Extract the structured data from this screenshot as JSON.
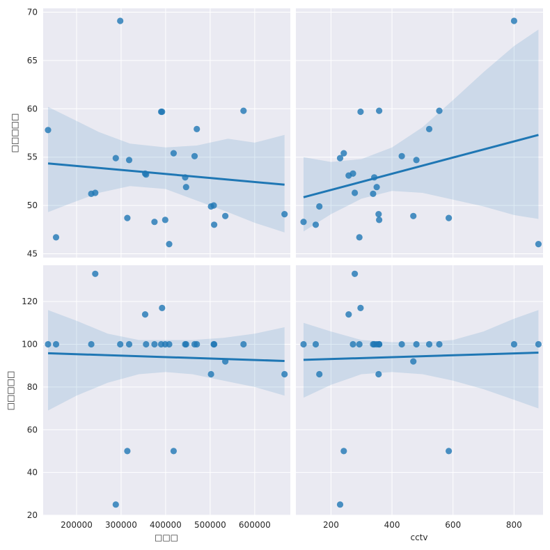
{
  "chart_data": {
    "type": "scatter",
    "grid": true,
    "x_vars": [
      {
        "label": "□□□",
        "lim": [
          125000,
          680000
        ],
        "ticks": [
          200000,
          300000,
          400000,
          500000,
          600000
        ],
        "tick_labels": [
          "200000",
          "300000",
          "400000",
          "500000",
          "600000"
        ]
      },
      {
        "label": "cctv",
        "lim": [
          85,
          895
        ],
        "ticks": [
          200,
          400,
          600,
          800
        ],
        "tick_labels": [
          "200",
          "400",
          "600",
          "800"
        ]
      }
    ],
    "y_vars": [
      {
        "label": "□□□□□",
        "lim": [
          44.6,
          70.4
        ],
        "ticks": [
          45,
          50,
          55,
          60,
          65,
          70
        ],
        "tick_labels": [
          "45",
          "50",
          "55",
          "60",
          "65",
          "70"
        ]
      },
      {
        "label": "□□□□□",
        "lim": [
          20,
          137
        ],
        "ticks": [
          20,
          40,
          60,
          80,
          100,
          120
        ],
        "tick_labels": [
          "20",
          "40",
          "60",
          "80",
          "100",
          "120"
        ]
      }
    ],
    "series": {
      "x0": [
        136000,
        154000,
        233000,
        242000,
        288000,
        298000,
        314000,
        318000,
        354000,
        356000,
        375000,
        390000,
        392000,
        399000,
        408000,
        418000,
        444000,
        446000,
        465000,
        470000,
        502000,
        508000,
        509000,
        534000,
        575000,
        667000
      ],
      "x1": [
        110,
        150,
        162,
        230,
        242,
        258,
        272,
        278,
        293,
        297,
        338,
        342,
        350,
        356,
        358,
        358,
        432,
        470,
        480,
        522,
        555,
        586,
        800,
        880
      ],
      "y0": [
        57.8,
        46.7,
        51.2,
        51.3,
        54.9,
        69.1,
        48.7,
        54.7,
        53.3,
        53.2,
        48.3,
        59.7,
        59.7,
        48.5,
        46.0,
        55.4,
        52.9,
        51.9,
        55.1,
        57.9,
        49.9,
        50.0,
        48.0,
        48.9,
        59.8,
        49.1
      ],
      "y1": [
        100,
        100,
        100,
        133,
        25,
        100,
        50,
        100,
        114,
        100,
        100,
        100,
        117,
        100,
        100,
        50,
        100,
        100,
        100,
        100,
        86,
        100,
        100,
        92,
        100,
        86
      ],
      "y0_x1": [
        48.3,
        48.0,
        49.9,
        54.9,
        55.4,
        53.1,
        53.3,
        51.3,
        46.7,
        59.7,
        51.2,
        52.9,
        51.9,
        49.1,
        59.8,
        48.5,
        55.1,
        48.9,
        54.7,
        57.9,
        59.8,
        48.7,
        69.1,
        46.0
      ],
      "y1_x1": [
        100,
        100,
        86,
        25,
        50,
        114,
        100,
        133,
        100,
        117,
        100,
        100,
        100,
        86,
        100,
        100,
        100,
        92,
        100,
        100,
        100,
        50,
        100,
        100
      ]
    },
    "panels": [
      {
        "row": 0,
        "col": 0,
        "x_key": "x0",
        "y_key": "y0",
        "fit": {
          "x": [
            136000,
            667000
          ],
          "y": [
            54.35,
            52.15
          ]
        },
        "band_x": [
          136000,
          180000,
          250000,
          320000,
          400000,
          470000,
          540000,
          600000,
          667000
        ],
        "band_lo": [
          49.3,
          50.1,
          51.3,
          52.0,
          51.7,
          50.5,
          49.3,
          48.2,
          47.2
        ],
        "band_hi": [
          60.2,
          59.2,
          57.6,
          56.4,
          56.0,
          56.2,
          56.9,
          56.5,
          57.3
        ]
      },
      {
        "row": 0,
        "col": 1,
        "x_key": "x1",
        "y_key": "y0_x1",
        "fit": {
          "x": [
            110,
            880
          ],
          "y": [
            50.85,
            57.3
          ]
        },
        "band_x": [
          110,
          200,
          300,
          400,
          500,
          600,
          700,
          800,
          880
        ],
        "band_lo": [
          47.3,
          49.1,
          50.7,
          51.5,
          51.3,
          50.6,
          49.9,
          49.0,
          48.6
        ],
        "band_hi": [
          55.0,
          54.5,
          54.8,
          56.0,
          58.1,
          60.9,
          63.8,
          66.5,
          68.2
        ]
      },
      {
        "row": 1,
        "col": 0,
        "x_key": "x0",
        "y_key": "y1",
        "fit": {
          "x": [
            136000,
            667000
          ],
          "y": [
            95.8,
            92.2
          ]
        },
        "band_x": [
          136000,
          200000,
          270000,
          340000,
          400000,
          460000,
          530000,
          600000,
          667000
        ],
        "band_lo": [
          69,
          76,
          82,
          86,
          87,
          86,
          83,
          80,
          76
        ],
        "band_hi": [
          116,
          111,
          105,
          102,
          102,
          102,
          103,
          105,
          108
        ]
      },
      {
        "row": 1,
        "col": 1,
        "x_key": "x1",
        "y_key": "y1_x1",
        "fit": {
          "x": [
            110,
            880
          ],
          "y": [
            92.7,
            96.1
          ]
        },
        "band_x": [
          110,
          200,
          300,
          400,
          500,
          600,
          700,
          800,
          880
        ],
        "band_lo": [
          75,
          81,
          86,
          87,
          86,
          83,
          79,
          74,
          70
        ],
        "band_hi": [
          110,
          106,
          102,
          101,
          101,
          102,
          106,
          112,
          116
        ]
      }
    ]
  }
}
